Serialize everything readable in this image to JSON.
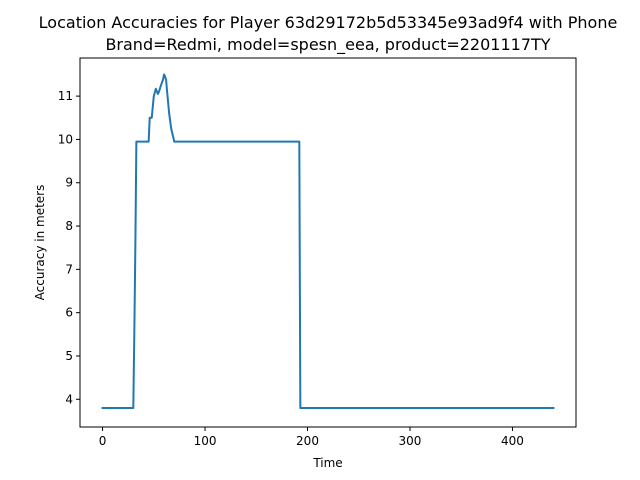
{
  "chart_data": {
    "type": "line",
    "title_line1": "Location Accuracies for Player 63d29172b5d53345e93ad9f4 with Phone",
    "title_line2": "Brand=Redmi, model=spesn_eea, product=2201117TY",
    "xlabel": "Time",
    "ylabel": "Accuracy in meters",
    "xlim": [
      -22,
      462
    ],
    "ylim": [
      3.36,
      11.88
    ],
    "xticks": [
      0,
      100,
      200,
      300,
      400
    ],
    "yticks": [
      4,
      5,
      6,
      7,
      8,
      9,
      10,
      11
    ],
    "grid": false,
    "series": [
      {
        "color": "#1f77b4",
        "x": [
          0,
          30,
          31,
          32,
          33,
          35,
          40,
          45,
          46,
          47,
          48,
          50,
          52,
          54,
          55,
          57,
          59,
          60,
          61,
          62,
          63,
          65,
          67,
          70,
          75,
          100,
          150,
          190,
          191,
          192,
          193,
          195,
          200,
          300,
          400,
          440
        ],
        "y": [
          3.8,
          3.8,
          5.5,
          7.5,
          9.95,
          9.95,
          9.95,
          9.95,
          10.5,
          10.5,
          10.5,
          11.0,
          11.17,
          11.05,
          11.1,
          11.25,
          11.38,
          11.5,
          11.45,
          11.38,
          11.1,
          10.6,
          10.25,
          9.95,
          9.95,
          9.95,
          9.95,
          9.95,
          9.95,
          9.95,
          3.8,
          3.8,
          3.8,
          3.8,
          3.8,
          3.8
        ]
      }
    ]
  }
}
